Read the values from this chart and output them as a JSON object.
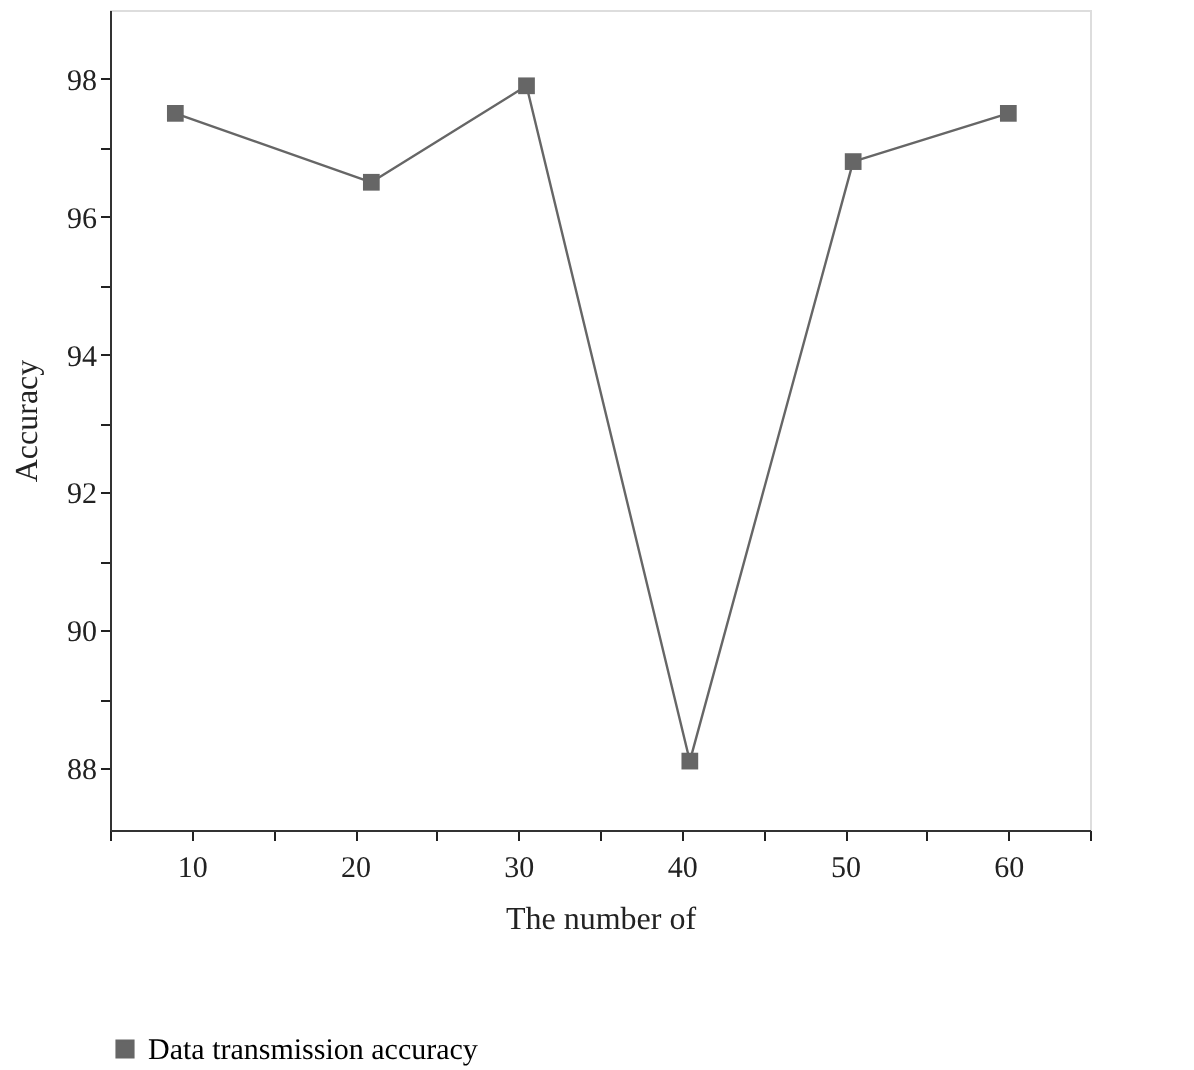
{
  "chart_data": {
    "type": "line",
    "xlabel": "The number of",
    "ylabel": "Accuracy",
    "x": [
      9,
      21,
      30.5,
      40.5,
      50.5,
      60
    ],
    "series": [
      {
        "name": "Data transmission accuracy",
        "color": "#666666",
        "values": [
          97.5,
          96.5,
          97.9,
          88.1,
          96.8,
          97.5
        ]
      }
    ],
    "xlim": [
      5,
      65
    ],
    "xticks": [
      {
        "value": 5,
        "label": null
      },
      10,
      {
        "value": 15,
        "label": null
      },
      20,
      {
        "value": 25,
        "label": null
      },
      30,
      {
        "value": 35,
        "label": null
      },
      40,
      {
        "value": 45,
        "label": null
      },
      50,
      {
        "value": 55,
        "label": null
      },
      60,
      {
        "value": 65,
        "label": null
      }
    ],
    "ylim": [
      87.1,
      99
    ],
    "yticks": [
      88,
      {
        "value": 89,
        "label": null
      },
      90,
      {
        "value": 91,
        "label": null
      },
      92,
      {
        "value": 93,
        "label": null
      },
      94,
      {
        "value": 95,
        "label": null
      },
      96,
      {
        "value": 97,
        "label": null
      },
      98
    ],
    "marker": "square",
    "line_style": "solid",
    "grid": false,
    "legend": "bottom"
  }
}
